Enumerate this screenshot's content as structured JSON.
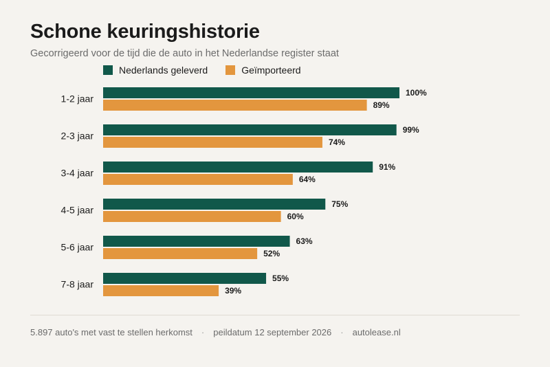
{
  "header": {
    "title": "Schone keuringshistorie",
    "subtitle": "Gecorrigeerd voor de tijd die de auto in het Nederlandse register staat"
  },
  "colors": {
    "nl": "#11584a",
    "imported": "#e3963e"
  },
  "chart_data": {
    "type": "bar",
    "orientation": "horizontal",
    "title": "Schone keuringshistorie",
    "subtitle": "Gecorrigeerd voor de tijd die de auto in het Nederlandse register staat",
    "categories": [
      "1-2 jaar",
      "2-3 jaar",
      "3-4 jaar",
      "4-5 jaar",
      "5-6 jaar",
      "7-8 jaar"
    ],
    "series": [
      {
        "name": "Nederlands geleverd",
        "values": [
          100,
          99,
          91,
          75,
          63,
          55
        ],
        "labels": [
          "100%",
          "99%",
          "91%",
          "75%",
          "63%",
          "55%"
        ]
      },
      {
        "name": "Geïmporteerd",
        "values": [
          89,
          74,
          64,
          60,
          52,
          39
        ],
        "labels": [
          "89%",
          "74%",
          "64%",
          "60%",
          "52%",
          "39%"
        ]
      }
    ],
    "xlim": [
      0,
      100
    ],
    "legend_position": "top-left",
    "grid": false
  },
  "footer": {
    "count": "5.897 auto's met vast te stellen herkomst",
    "sep": "·",
    "date": "peildatum 12 september 2026",
    "source": "autolease.nl"
  }
}
